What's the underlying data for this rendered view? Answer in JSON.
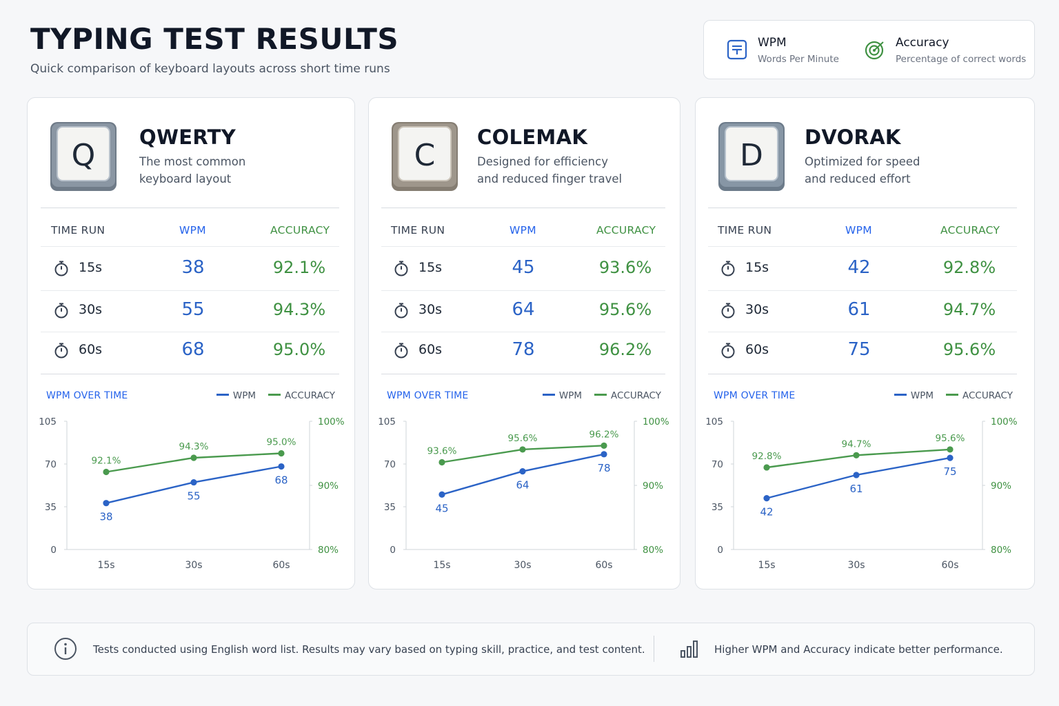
{
  "header": {
    "title": "TYPING TEST RESULTS",
    "subtitle": "Quick comparison of keyboard layouts across short time runs"
  },
  "legend": {
    "wpm": {
      "title": "WPM",
      "desc": "Words Per Minute",
      "icon": "document-icon"
    },
    "accuracy": {
      "title": "Accuracy",
      "desc": "Percentage of correct words",
      "icon": "target-icon"
    }
  },
  "table_headers": {
    "time": "TIME RUN",
    "wpm": "WPM",
    "accuracy": "ACCURACY"
  },
  "chart_labels": {
    "title": "WPM OVER TIME",
    "wpm": "WPM",
    "accuracy": "ACCURACY"
  },
  "colors": {
    "wpm": "#2b63c6",
    "accuracy": "#4a9a4e"
  },
  "layouts": [
    {
      "key": "Q",
      "name": "QWERTY",
      "desc1": "The most common",
      "desc2": "keyboard layout",
      "rows": [
        {
          "time": "15s",
          "wpm": "38",
          "acc": "92.1%"
        },
        {
          "time": "30s",
          "wpm": "55",
          "acc": "94.3%"
        },
        {
          "time": "60s",
          "wpm": "68",
          "acc": "95.0%"
        }
      ]
    },
    {
      "key": "C",
      "name": "COLEMAK",
      "desc1": "Designed for efficiency",
      "desc2": "and reduced finger travel",
      "rows": [
        {
          "time": "15s",
          "wpm": "45",
          "acc": "93.6%"
        },
        {
          "time": "30s",
          "wpm": "64",
          "acc": "95.6%"
        },
        {
          "time": "60s",
          "wpm": "78",
          "acc": "96.2%"
        }
      ]
    },
    {
      "key": "D",
      "name": "DVORAK",
      "desc1": "Optimized for speed",
      "desc2": "and reduced effort",
      "rows": [
        {
          "time": "15s",
          "wpm": "42",
          "acc": "92.8%"
        },
        {
          "time": "30s",
          "wpm": "61",
          "acc": "94.7%"
        },
        {
          "time": "60s",
          "wpm": "75",
          "acc": "95.6%"
        }
      ]
    }
  ],
  "chart_data": [
    {
      "type": "line",
      "title": "WPM OVER TIME",
      "categories": [
        "15s",
        "30s",
        "60s"
      ],
      "y_left": {
        "ticks": [
          "0",
          "35",
          "70",
          "105"
        ],
        "range": [
          0,
          105
        ]
      },
      "y_right": {
        "ticks": [
          "80%",
          "90%",
          "100%"
        ],
        "range": [
          80,
          100
        ]
      },
      "series": [
        {
          "name": "WPM",
          "axis": "left",
          "values": [
            38,
            55,
            68
          ],
          "labels": [
            "38",
            "55",
            "68"
          ]
        },
        {
          "name": "ACCURACY",
          "axis": "right",
          "values": [
            92.1,
            94.3,
            95.0
          ],
          "labels": [
            "92.1%",
            "94.3%",
            "95.0%"
          ]
        }
      ],
      "legend": "top-right",
      "grid": false
    },
    {
      "type": "line",
      "title": "WPM OVER TIME",
      "categories": [
        "15s",
        "30s",
        "60s"
      ],
      "y_left": {
        "ticks": [
          "0",
          "35",
          "70",
          "105"
        ],
        "range": [
          0,
          105
        ]
      },
      "y_right": {
        "ticks": [
          "80%",
          "90%",
          "100%"
        ],
        "range": [
          80,
          100
        ]
      },
      "series": [
        {
          "name": "WPM",
          "axis": "left",
          "values": [
            45,
            64,
            78
          ],
          "labels": [
            "45",
            "64",
            "78"
          ]
        },
        {
          "name": "ACCURACY",
          "axis": "right",
          "values": [
            93.6,
            95.6,
            96.2
          ],
          "labels": [
            "93.6%",
            "95.6%",
            "96.2%"
          ]
        }
      ],
      "legend": "top-right",
      "grid": false
    },
    {
      "type": "line",
      "title": "WPM OVER TIME",
      "categories": [
        "15s",
        "30s",
        "60s"
      ],
      "y_left": {
        "ticks": [
          "0",
          "35",
          "70",
          "105"
        ],
        "range": [
          0,
          105
        ]
      },
      "y_right": {
        "ticks": [
          "80%",
          "90%",
          "100%"
        ],
        "range": [
          80,
          100
        ]
      },
      "series": [
        {
          "name": "WPM",
          "axis": "left",
          "values": [
            42,
            61,
            75
          ],
          "labels": [
            "42",
            "61",
            "75"
          ]
        },
        {
          "name": "ACCURACY",
          "axis": "right",
          "values": [
            92.8,
            94.7,
            95.6
          ],
          "labels": [
            "92.8%",
            "94.7%",
            "95.6%"
          ]
        }
      ],
      "legend": "top-right",
      "grid": false
    }
  ],
  "footer": {
    "note": "Tests conducted using English word list. Results may vary based on typing skill, practice, and test content.",
    "note2": "Higher WPM and Accuracy indicate better performance.",
    "info_icon": "info-icon",
    "chart_icon": "bar-chart-icon"
  }
}
